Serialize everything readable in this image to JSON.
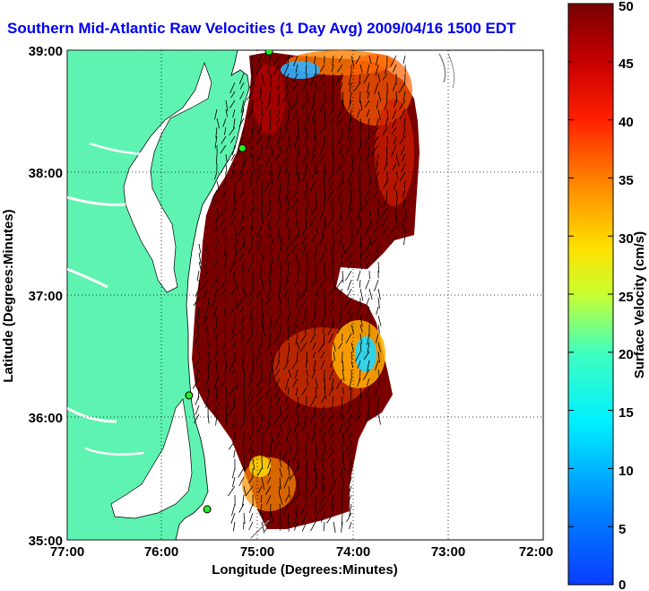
{
  "title": "Southern Mid-Atlantic Raw Velocities (1 Day Avg) 2009/04/16 1500 EDT",
  "x_axis": {
    "label": "Longitude (Degrees:Minutes)",
    "ticks": [
      "77:00",
      "76:00",
      "75:00",
      "74:00",
      "73:00",
      "72:00"
    ]
  },
  "y_axis": {
    "label": "Latitude (Degrees:Minutes)",
    "ticks": [
      "39:00",
      "38:00",
      "37:00",
      "36:00",
      "35:00"
    ]
  },
  "colorbar": {
    "label": "Surface Velocity (cm/s)",
    "ticks": [
      "50",
      "45",
      "40",
      "35",
      "30",
      "25",
      "20",
      "15",
      "10",
      "5",
      "0"
    ],
    "range": [
      0,
      50
    ],
    "colormap": "jet"
  },
  "colors": {
    "land": "#5ef3b0",
    "title": "#0000ee",
    "high_velocity": "#7a0000",
    "low_velocity": "#0a6cff"
  },
  "map": {
    "lon_range": [
      -77,
      -72
    ],
    "lat_range": [
      35,
      39
    ],
    "grid": "dotted",
    "stations": [
      {
        "lon": -74.88,
        "lat": 38.99
      },
      {
        "lon": -75.16,
        "lat": 38.2
      },
      {
        "lon": -75.72,
        "lat": 36.18
      },
      {
        "lon": -75.53,
        "lat": 35.25
      }
    ]
  }
}
